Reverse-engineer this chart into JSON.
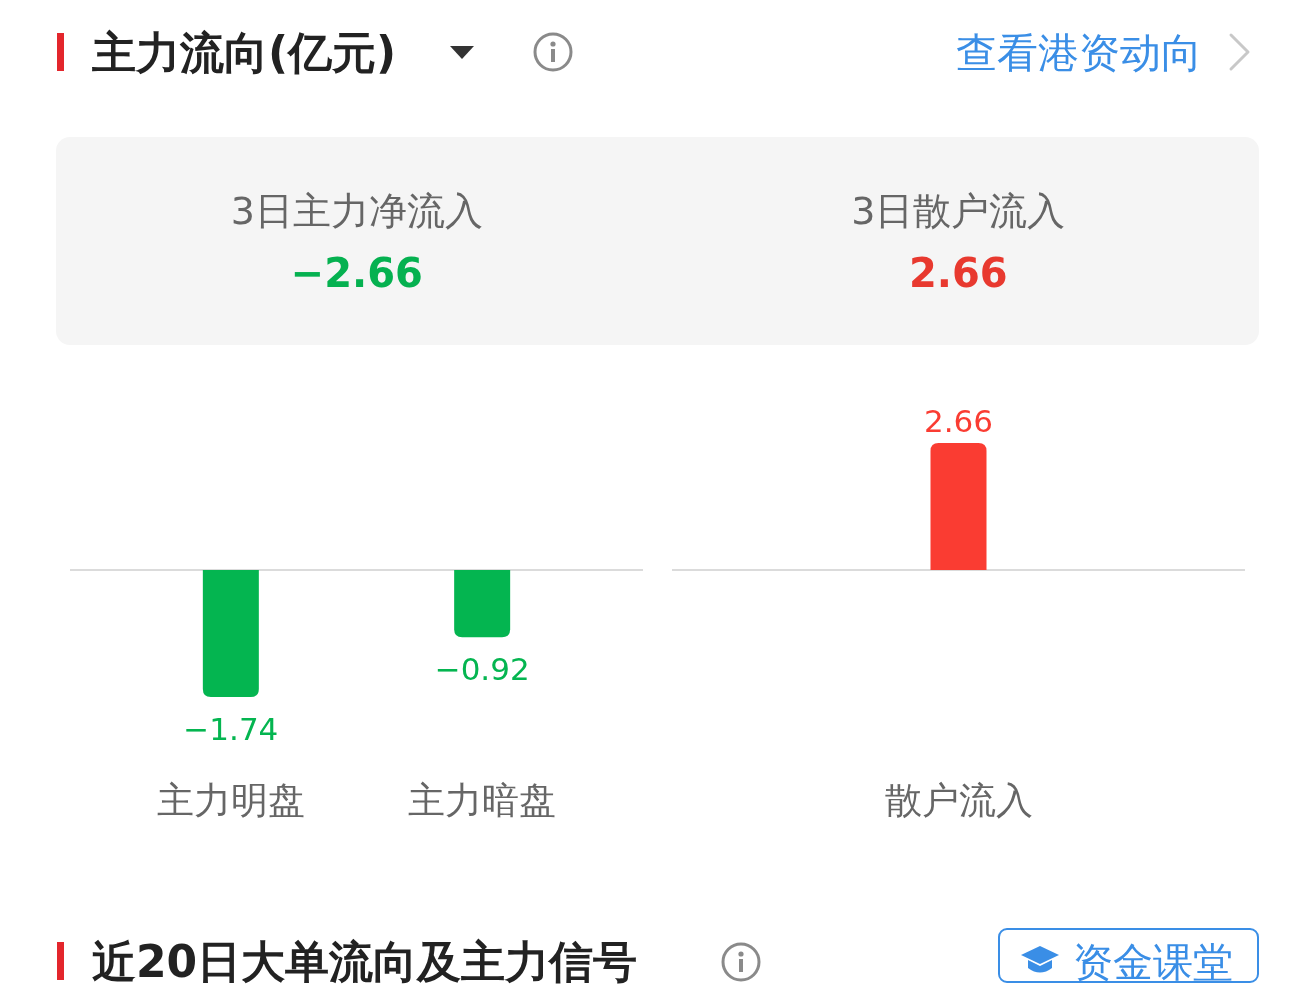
{
  "chart_data": [
    {
      "type": "other",
      "title": "主力流向(亿元)",
      "annotations": [
        "查看港资动向"
      ],
      "categories": [
        "3日主力净流入",
        "3日散户流入"
      ],
      "values": [
        -2.66,
        2.66
      ],
      "data_labels": true
    },
    {
      "type": "bar",
      "categories": [
        "主力明盘",
        "主力暗盘"
      ],
      "values": [
        -1.74,
        -0.92
      ],
      "color": "#04b550",
      "data_labels": true
    },
    {
      "type": "bar",
      "categories": [
        "散户流入"
      ],
      "values": [
        2.66
      ],
      "color": "#fa3c32",
      "data_labels": true
    },
    {
      "type": "other",
      "title": "近20日大单流向及主力信号",
      "annotations": [
        "资金课堂"
      ]
    }
  ]
}
